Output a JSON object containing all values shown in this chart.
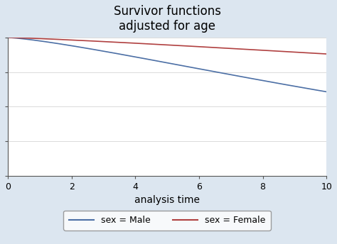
{
  "title": "Survivor functions\nadjusted for age",
  "xlabel": "analysis time",
  "ylabel": "",
  "xlim": [
    0,
    10
  ],
  "ylim": [
    0,
    1
  ],
  "xticks": [
    0,
    2,
    4,
    6,
    8,
    10
  ],
  "yticks": [
    0.0,
    0.25,
    0.5,
    0.75,
    1.0
  ],
  "background_color": "#dce6f0",
  "plot_bg_color": "#ffffff",
  "male_color": "#4c6fa5",
  "female_color": "#b04040",
  "male_label": "sex = Male",
  "female_label": "sex = Female",
  "title_fontsize": 12,
  "tick_fontsize": 9,
  "label_fontsize": 10
}
